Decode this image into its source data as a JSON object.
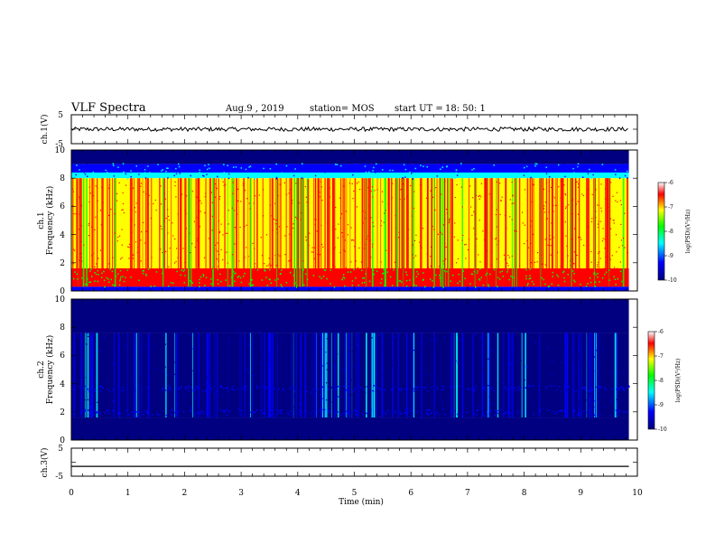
{
  "header": {
    "title": "VLF Spectra",
    "date": "Aug.9 , 2019",
    "station": "station= MOS",
    "start_label": "start UT =",
    "start_time": "18: 50: 1"
  },
  "chart_data": [
    {
      "type": "line",
      "panel": "ch1-waveform",
      "ylabel": "ch.1(V)",
      "ylim": [
        -5,
        5
      ],
      "ytick_labels": [
        "5",
        "-5"
      ],
      "level": 0
    },
    {
      "type": "heatmap",
      "panel": "ch1-spectrogram",
      "ylabel_top": "ch.1",
      "ylabel": "Frequency (kHz)",
      "ylim": [
        0,
        10
      ],
      "ytick_labels": [
        "0",
        "2",
        "4",
        "6",
        "8",
        "10"
      ],
      "colorbar": {
        "label": "log(PSD)(V²/Hz)",
        "range": [
          -10,
          -6
        ],
        "tick_labels": [
          "-6",
          "-7",
          "-8",
          "-9",
          "-10"
        ],
        "colors": [
          "#ff0000",
          "#ffff00",
          "#00ff00",
          "#00ffff",
          "#0000ff",
          "#000080"
        ]
      },
      "bands_khz": [
        {
          "from": 9.0,
          "to": 10.0,
          "level": -10
        },
        {
          "from": 8.4,
          "to": 9.0,
          "level": -8.5
        },
        {
          "from": 8.0,
          "to": 8.4,
          "level": -7.8
        },
        {
          "from": 1.6,
          "to": 8.0,
          "level": -6.5
        },
        {
          "from": 0.3,
          "to": 1.6,
          "level": -6.2
        },
        {
          "from": 0.0,
          "to": 0.3,
          "level": -8.5
        }
      ]
    },
    {
      "type": "heatmap",
      "panel": "ch2-spectrogram",
      "ylabel_top": "ch.2",
      "ylabel": "Frequency (kHz)",
      "ylim": [
        0,
        10
      ],
      "ytick_labels": [
        "0",
        "2",
        "4",
        "6",
        "8",
        "10"
      ],
      "colorbar": {
        "label": "log(PSD)(V²/Hz)",
        "range": [
          -10,
          -6
        ],
        "tick_labels": [
          "-6",
          "-7",
          "-8",
          "-9",
          "-10"
        ],
        "colors": [
          "#ff0000",
          "#ffff00",
          "#00ff00",
          "#00ffff",
          "#0000ff",
          "#000080"
        ]
      },
      "bands_khz": [
        {
          "from": 7.6,
          "to": 10.0,
          "level": -10
        },
        {
          "from": 1.6,
          "to": 7.6,
          "level": -9.4
        },
        {
          "from": 0.0,
          "to": 1.6,
          "level": -10
        }
      ]
    },
    {
      "type": "line",
      "panel": "ch3-waveform",
      "ylabel": "ch.3(V)",
      "ylim": [
        -5,
        5
      ],
      "ytick_labels": [
        "5",
        "-5"
      ],
      "level": -1.5
    }
  ],
  "x_axis": {
    "label": "Time (min)",
    "range": [
      0,
      10
    ],
    "data_end": 9.85,
    "tick_labels": [
      "0",
      "1",
      "2",
      "3",
      "4",
      "5",
      "6",
      "7",
      "8",
      "9",
      "10"
    ]
  }
}
